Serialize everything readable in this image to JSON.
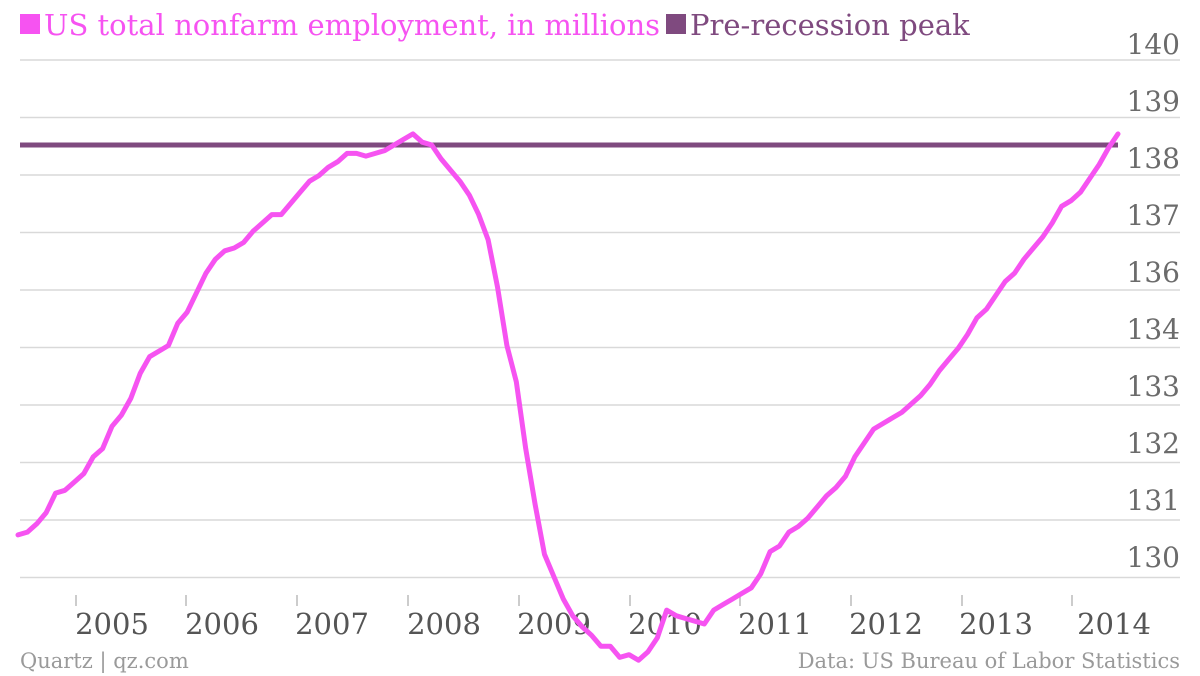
{
  "chart_data": {
    "type": "line",
    "title": "",
    "xlabel": "",
    "ylabel": "",
    "legend": {
      "placement": "top-left",
      "entries": [
        {
          "label": "US total nonfarm employment, in millions",
          "color": "#f653f1"
        },
        {
          "label": "Pre-recession peak",
          "color": "#7f4a7f"
        }
      ]
    },
    "y_tick_labels": [
      "140",
      "139",
      "138",
      "137",
      "136",
      "134",
      "133",
      "132",
      "131",
      "130"
    ],
    "x_tick_labels": [
      "2005",
      "2006",
      "2007",
      "2008",
      "2009",
      "2010",
      "2011",
      "2012",
      "2013",
      "2014"
    ],
    "grid": true,
    "series": [
      {
        "name": "US total nonfarm employment, in millions",
        "color": "#f653f1",
        "values": [
          131.5,
          131.55,
          131.7,
          131.9,
          132.25,
          132.3,
          132.45,
          132.6,
          132.9,
          133.05,
          133.45,
          133.65,
          133.95,
          134.4,
          134.7,
          134.8,
          134.9,
          135.3,
          135.5,
          135.85,
          136.2,
          136.45,
          136.6,
          136.65,
          136.75,
          136.95,
          137.1,
          137.25,
          137.25,
          137.45,
          137.65,
          137.85,
          137.95,
          138.1,
          138.2,
          138.35,
          138.35,
          138.3,
          138.35,
          138.4,
          138.5,
          138.6,
          138.7,
          138.55,
          138.5,
          138.25,
          138.05,
          137.85,
          137.6,
          137.25,
          136.8,
          135.95,
          134.9,
          134.25,
          133.05,
          132.05,
          131.15,
          130.75,
          130.35,
          130.05,
          129.85,
          129.7,
          129.5,
          129.5,
          129.3,
          129.35,
          129.25,
          129.4,
          129.65,
          130.15,
          130.05,
          130.0,
          129.95,
          129.9,
          130.15,
          130.25,
          130.35,
          130.45,
          130.55,
          130.8,
          131.2,
          131.3,
          131.55,
          131.65,
          131.8,
          132.0,
          132.2,
          132.35,
          132.55,
          132.9,
          133.15,
          133.4,
          133.5,
          133.6,
          133.7,
          133.85,
          134.0,
          134.2,
          134.45,
          134.65,
          134.85,
          135.1,
          135.4,
          135.55,
          135.8,
          136.05,
          136.2,
          136.45,
          136.65,
          136.85,
          137.1,
          137.4,
          137.5,
          137.65,
          137.9,
          138.15,
          138.45,
          138.7
        ]
      },
      {
        "name": "Pre-recession peak",
        "color": "#7f4a7f",
        "values": [
          138.5,
          138.5
        ]
      }
    ],
    "footer": {
      "source_left": "Quartz | qz.com",
      "source_right": "Data: US Bureau of Labor Statistics"
    }
  }
}
